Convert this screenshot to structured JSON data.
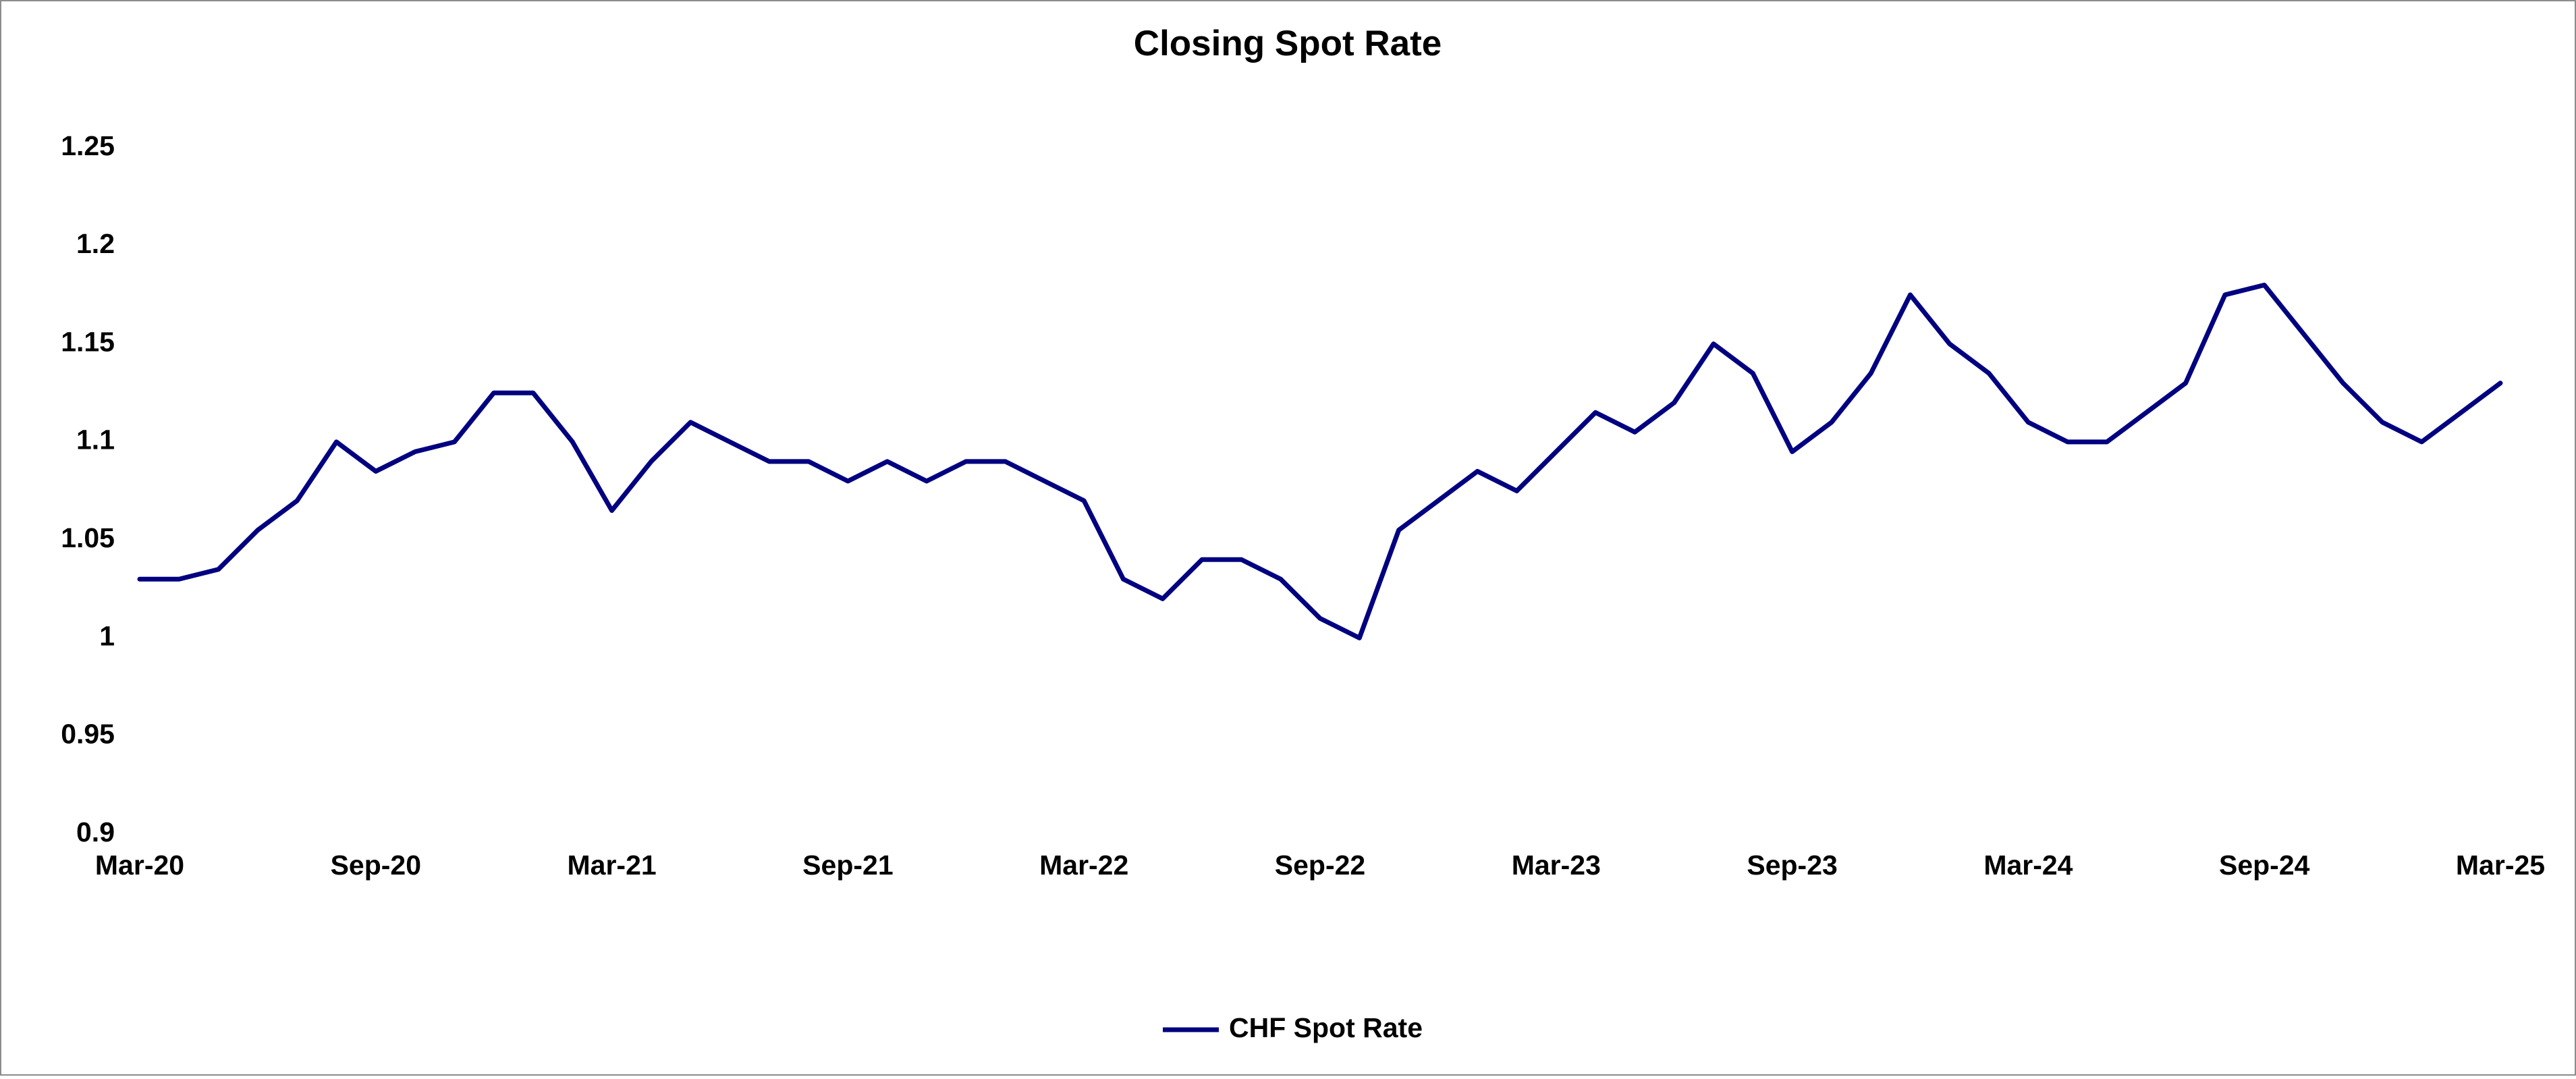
{
  "chart_data": {
    "type": "line",
    "title": "Closing Spot Rate",
    "x": [
      "Mar-20",
      "Apr-20",
      "May-20",
      "Jun-20",
      "Jul-20",
      "Aug-20",
      "Sep-20",
      "Oct-20",
      "Nov-20",
      "Dec-20",
      "Jan-21",
      "Feb-21",
      "Mar-21",
      "Apr-21",
      "May-21",
      "Jun-21",
      "Jul-21",
      "Aug-21",
      "Sep-21",
      "Oct-21",
      "Nov-21",
      "Dec-21",
      "Jan-22",
      "Feb-22",
      "Mar-22",
      "Apr-22",
      "May-22",
      "Jun-22",
      "Jul-22",
      "Aug-22",
      "Sep-22",
      "Oct-22",
      "Nov-22",
      "Dec-22",
      "Jan-23",
      "Feb-23",
      "Mar-23",
      "Apr-23",
      "May-23",
      "Jun-23",
      "Jul-23",
      "Aug-23",
      "Sep-23",
      "Oct-23",
      "Nov-23",
      "Dec-23",
      "Jan-24",
      "Feb-24",
      "Mar-24",
      "Apr-24",
      "May-24",
      "Jun-24",
      "Jul-24",
      "Aug-24",
      "Sep-24",
      "Oct-24",
      "Nov-24",
      "Dec-24",
      "Jan-25",
      "Feb-25",
      "Mar-25"
    ],
    "xticks": [
      "Mar-20",
      "Sep-20",
      "Mar-21",
      "Sep-21",
      "Mar-22",
      "Sep-22",
      "Mar-23",
      "Sep-23",
      "Mar-24",
      "Sep-24",
      "Mar-25"
    ],
    "series": [
      {
        "name": "CHF Spot Rate",
        "color": "#000080",
        "values": [
          1.03,
          1.03,
          1.035,
          1.055,
          1.07,
          1.1,
          1.085,
          1.095,
          1.1,
          1.125,
          1.125,
          1.1,
          1.065,
          1.09,
          1.11,
          1.1,
          1.09,
          1.09,
          1.08,
          1.09,
          1.08,
          1.09,
          1.09,
          1.08,
          1.07,
          1.03,
          1.02,
          1.04,
          1.04,
          1.03,
          1.01,
          1.0,
          1.055,
          1.07,
          1.085,
          1.075,
          1.095,
          1.115,
          1.105,
          1.12,
          1.15,
          1.135,
          1.095,
          1.11,
          1.135,
          1.175,
          1.15,
          1.135,
          1.11,
          1.1,
          1.1,
          1.115,
          1.13,
          1.175,
          1.18,
          1.155,
          1.13,
          1.11,
          1.1,
          1.115,
          1.13
        ]
      }
    ],
    "ylim": [
      0.9,
      1.25
    ],
    "yticks": [
      0.9,
      0.95,
      1,
      1.05,
      1.1,
      1.15,
      1.2,
      1.25
    ],
    "grid": false,
    "legend": "bottom"
  }
}
